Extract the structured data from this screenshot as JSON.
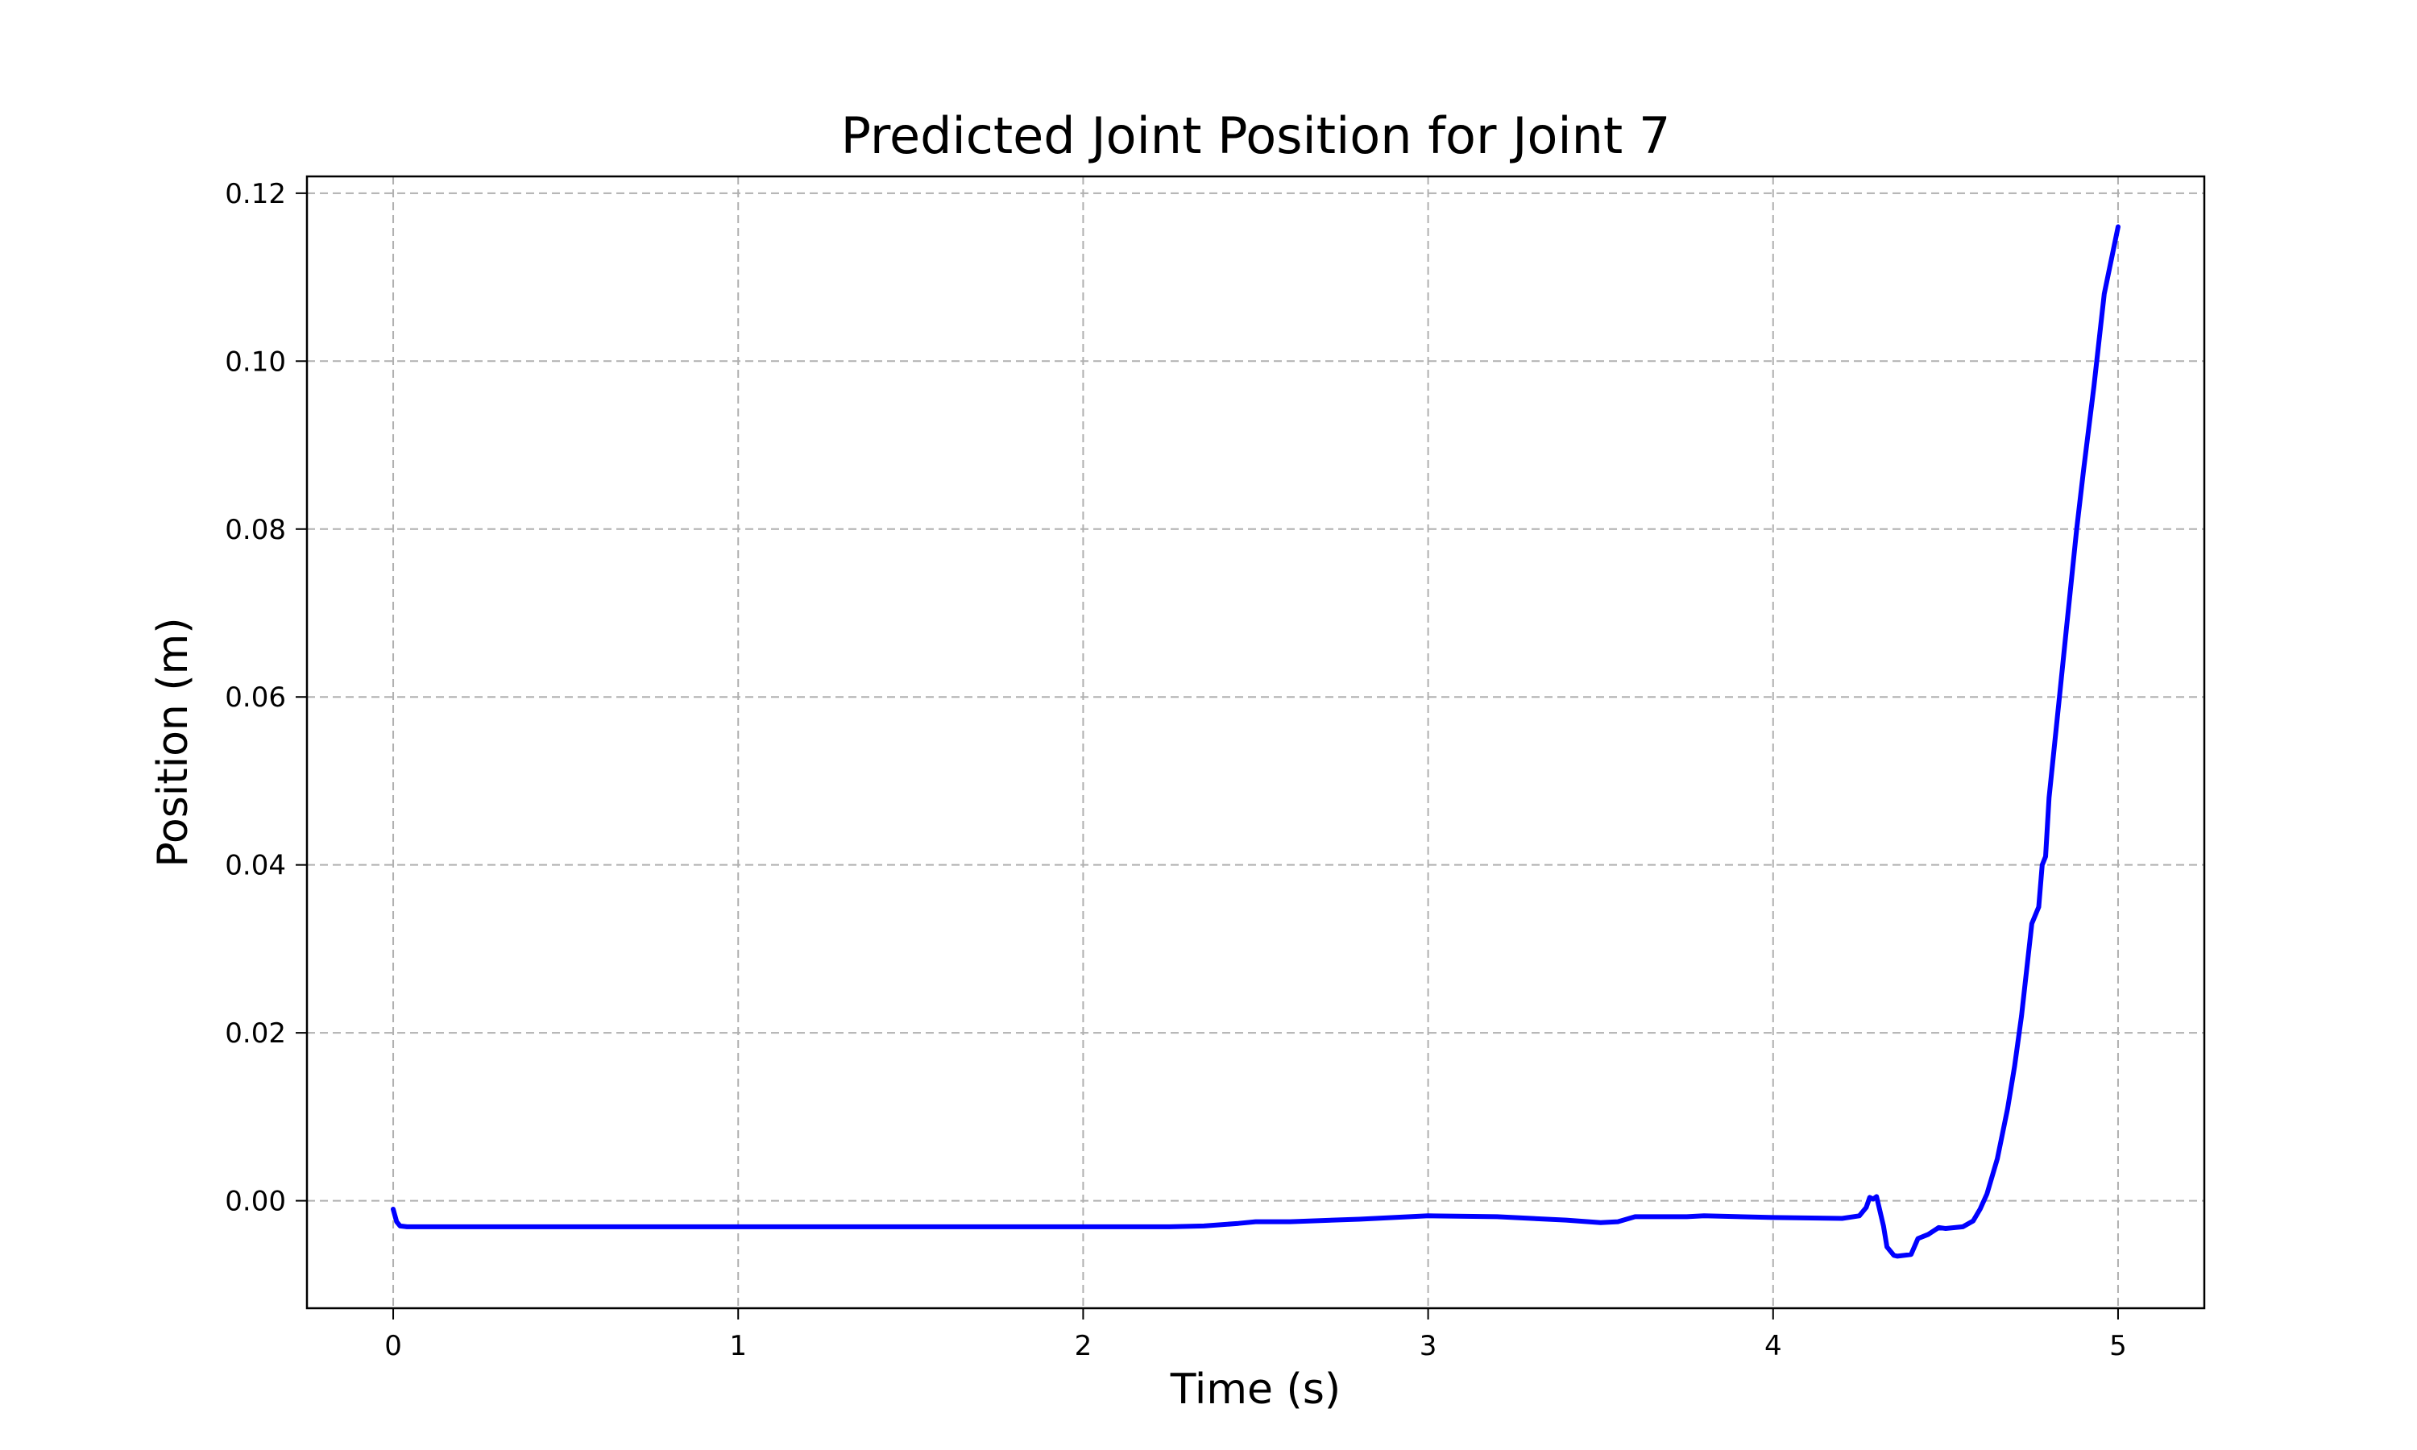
{
  "chart_data": {
    "type": "line",
    "title": "Predicted Joint Position for Joint 7",
    "xlabel": "Time (s)",
    "ylabel": "Position (m)",
    "xlim": [
      -0.25,
      5.25
    ],
    "ylim": [
      -0.0128,
      0.122
    ],
    "xticks": [
      0,
      1,
      2,
      3,
      4,
      5
    ],
    "xtick_labels": [
      "0",
      "1",
      "2",
      "3",
      "4",
      "5"
    ],
    "yticks": [
      0.0,
      0.02,
      0.04,
      0.06,
      0.08,
      0.1,
      0.12
    ],
    "ytick_labels": [
      "0.00",
      "0.02",
      "0.04",
      "0.06",
      "0.08",
      "0.10",
      "0.12"
    ],
    "grid": true,
    "legend": "none",
    "series": [
      {
        "color": "#0000ff",
        "x": [
          0.0,
          0.01,
          0.02,
          0.04,
          0.1,
          0.5,
          1.0,
          1.5,
          2.0,
          2.25,
          2.35,
          2.45,
          2.5,
          2.6,
          2.8,
          3.0,
          3.2,
          3.4,
          3.5,
          3.55,
          3.6,
          3.7,
          3.75,
          3.8,
          4.0,
          4.2,
          4.25,
          4.27,
          4.28,
          4.29,
          4.3,
          4.32,
          4.33,
          4.34,
          4.35,
          4.36,
          4.4,
          4.42,
          4.45,
          4.48,
          4.5,
          4.55,
          4.58,
          4.6,
          4.62,
          4.65,
          4.68,
          4.7,
          4.72,
          4.75,
          4.77,
          4.78,
          4.79,
          4.8,
          4.83,
          4.85,
          4.88,
          4.9,
          4.93,
          4.96,
          5.0
        ],
        "y": [
          -0.001,
          -0.0025,
          -0.003,
          -0.0031,
          -0.0031,
          -0.0031,
          -0.0031,
          -0.0031,
          -0.0031,
          -0.0031,
          -0.003,
          -0.0027,
          -0.0025,
          -0.0025,
          -0.0022,
          -0.0018,
          -0.0019,
          -0.0023,
          -0.0026,
          -0.0025,
          -0.0019,
          -0.0019,
          -0.0019,
          -0.0018,
          -0.002,
          -0.0021,
          -0.0018,
          -0.0008,
          0.0004,
          0.0002,
          0.0005,
          -0.003,
          -0.0055,
          -0.006,
          -0.0065,
          -0.0066,
          -0.0064,
          -0.0045,
          -0.004,
          -0.0032,
          -0.0033,
          -0.0031,
          -0.0024,
          -0.001,
          0.0008,
          0.005,
          0.011,
          0.016,
          0.022,
          0.033,
          0.035,
          0.04,
          0.041,
          0.048,
          0.06,
          0.068,
          0.08,
          0.087,
          0.097,
          0.108,
          0.116
        ]
      }
    ]
  }
}
